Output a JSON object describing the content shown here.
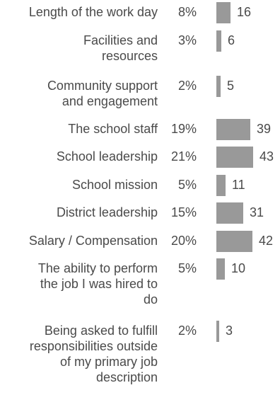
{
  "chart_data": {
    "type": "bar",
    "orientation": "horizontal",
    "title": "",
    "xlabel": "",
    "ylabel": "",
    "bar_color": "#999999",
    "text_color": "#4a4a4a",
    "categories": [
      "Length of the work day",
      "Facilities and resources",
      "Community support and engagement",
      "The school staff",
      "School leadership",
      "School mission",
      "District leadership",
      "Salary / Compensation",
      "The ability to perform the job I was hired to do",
      "Being asked to fulfill responsibilities outside of my primary job description"
    ],
    "category_lines": [
      [
        "Length of the work day"
      ],
      [
        "Facilities and",
        "resources"
      ],
      [
        "Community support",
        "and engagement"
      ],
      [
        "The school staff"
      ],
      [
        "School leadership"
      ],
      [
        "School mission"
      ],
      [
        "District leadership"
      ],
      [
        "Salary / Compensation"
      ],
      [
        "The ability to perform",
        "the job I was hired to",
        "do"
      ],
      [
        "Being asked to fulfill",
        "responsibilities outside",
        "of my primary job",
        "description"
      ]
    ],
    "percent_labels": [
      "8%",
      "3%",
      "2%",
      "19%",
      "21%",
      "5%",
      "15%",
      "20%",
      "5%",
      "2%"
    ],
    "values": [
      16,
      6,
      5,
      39,
      43,
      11,
      31,
      42,
      10,
      3
    ]
  }
}
